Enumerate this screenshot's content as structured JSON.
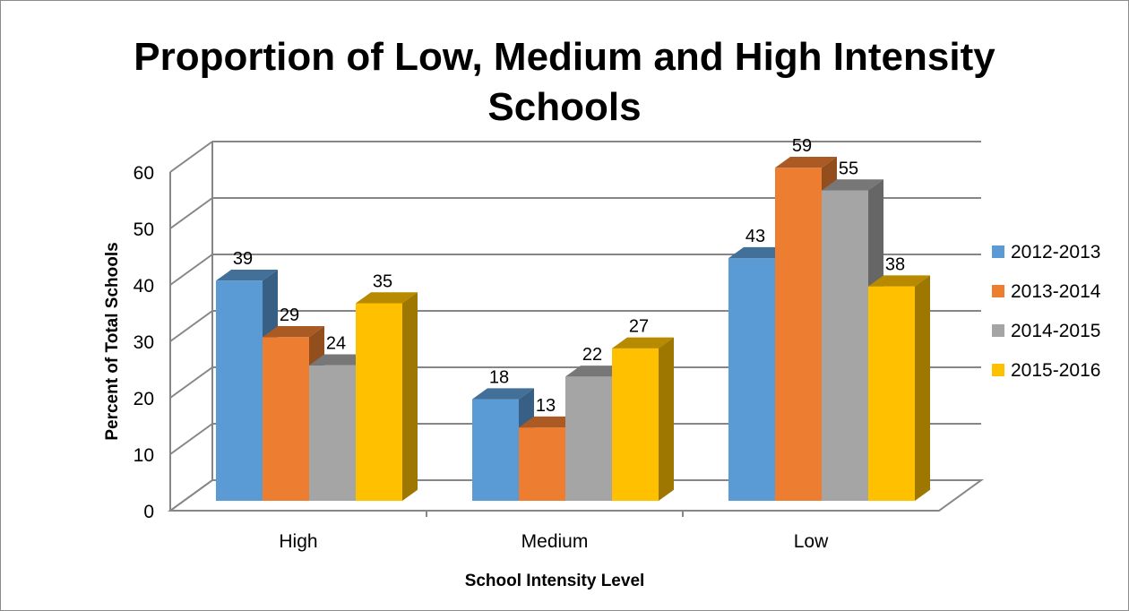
{
  "chart_data": {
    "type": "bar",
    "title": "Proportion of Low, Medium and High Intensity Schools",
    "title_lines": [
      "Proportion of Low, Medium and High Intensity",
      "Schools"
    ],
    "xlabel": "School Intensity Level",
    "ylabel": "Percent of Total Schools",
    "categories": [
      "High",
      "Medium",
      "Low"
    ],
    "ylim": [
      0,
      60
    ],
    "yticks": [
      0,
      10,
      20,
      30,
      40,
      50,
      60
    ],
    "grid": true,
    "legend_position": "right",
    "three_d": true,
    "series": [
      {
        "name": "2012-2013",
        "values": [
          39,
          18,
          43
        ],
        "color": "#5b9bd5"
      },
      {
        "name": "2013-2014",
        "values": [
          29,
          13,
          59
        ],
        "color": "#ed7d31"
      },
      {
        "name": "2014-2015",
        "values": [
          24,
          22,
          55
        ],
        "color": "#a5a5a5"
      },
      {
        "name": "2015-2016",
        "values": [
          35,
          27,
          38
        ],
        "color": "#ffc000"
      }
    ]
  }
}
